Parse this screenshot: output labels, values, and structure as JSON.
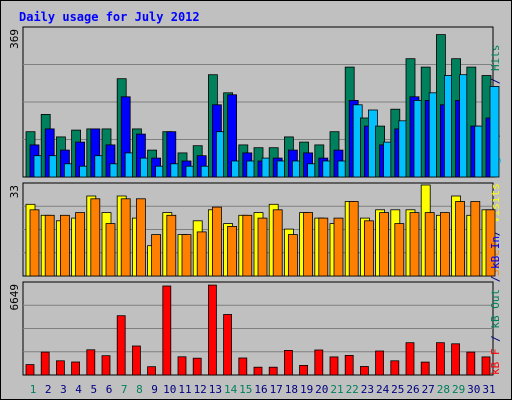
{
  "colors": {
    "background": "#C0C0C0",
    "border": "#000000",
    "title": "#0000FF",
    "hits": "#00805C",
    "files": "#0000FF",
    "pages": "#00C0FF",
    "visits": "#FFFF00",
    "sites": "#FF8000",
    "kb_in": "#0000FF",
    "kb_out": "#00805C",
    "kb_f": "#FF0000",
    "weekend_label": "#00805C",
    "weekday_label": "#000080"
  },
  "chart_data": {
    "type": "bar",
    "title": "Daily usage for July 2012",
    "categories": [
      "1",
      "2",
      "3",
      "4",
      "5",
      "6",
      "7",
      "8",
      "9",
      "10",
      "11",
      "12",
      "13",
      "14",
      "15",
      "16",
      "17",
      "18",
      "19",
      "20",
      "21",
      "22",
      "23",
      "24",
      "25",
      "26",
      "27",
      "28",
      "29",
      "30",
      "31"
    ],
    "weekend_days": [
      "1",
      "7",
      "8",
      "14",
      "15",
      "21",
      "22",
      "28",
      "29"
    ],
    "panels": [
      {
        "id": "hits-files-pages",
        "max_label": "369",
        "ylim": [
          0,
          369
        ],
        "right_labels": [
          {
            "text": "Pages",
            "color": "#00C0FF"
          },
          {
            "text": " / ",
            "color": "#000080"
          },
          {
            "text": "Files",
            "color": "#0000FF"
          },
          {
            "text": " / ",
            "color": "#000080"
          },
          {
            "text": "Hits",
            "color": "#00805C"
          }
        ],
        "series": [
          {
            "key": "hits",
            "color": "#00805C",
            "values": [
              113,
              156,
              100,
              117,
              120,
              120,
              245,
              120,
              67,
              113,
              60,
              78,
              255,
              210,
              80,
              73,
              73,
              100,
              87,
              80,
              113,
              274,
              147,
              127,
              169,
              295,
              274,
              355,
              295,
              274,
              253
            ]
          },
          {
            "key": "files",
            "color": "#0000FF",
            "values": [
              80,
              120,
              67,
              87,
              120,
              80,
              200,
              107,
              47,
              113,
              40,
              53,
              180,
              205,
              60,
              40,
              47,
              67,
              60,
              47,
              67,
              191,
              127,
              80,
              120,
              200,
              191,
              180,
              191,
              127,
              147
            ]
          },
          {
            "key": "pages",
            "color": "#00C0FF",
            "values": [
              53,
              53,
              33,
              27,
              53,
              33,
              60,
              47,
              27,
              33,
              27,
              27,
              113,
              40,
              40,
              47,
              40,
              40,
              33,
              40,
              40,
              180,
              167,
              87,
              140,
              191,
              210,
              253,
              255,
              127,
              226
            ]
          }
        ]
      },
      {
        "id": "visits-sites",
        "max_label": "33",
        "ylim": [
          0,
          33
        ],
        "right_labels": [
          {
            "text": "Sites",
            "color": "#FF8000"
          },
          {
            "text": " / ",
            "color": "#000080"
          },
          {
            "text": "Visits",
            "color": "#FFFF00"
          }
        ],
        "series": [
          {
            "key": "visits",
            "color": "#FFFF00",
            "values": [
              26,
              22,
              20,
              21,
              29,
              23,
              29,
              21,
              11,
              23,
              15,
              20,
              24,
              19,
              22,
              23,
              26,
              17,
              23,
              21,
              19,
              27,
              21,
              24,
              24,
              24,
              33,
              22,
              29,
              22,
              24
            ]
          },
          {
            "key": "sites",
            "color": "#FF8000",
            "values": [
              24,
              22,
              22,
              23,
              28,
              19,
              28,
              28,
              15,
              22,
              15,
              16,
              25,
              18,
              22,
              21,
              24,
              15,
              23,
              21,
              21,
              27,
              20,
              23,
              19,
              23,
              23,
              23,
              27,
              27,
              24
            ]
          }
        ]
      },
      {
        "id": "kb",
        "max_label": "6649",
        "ylim": [
          0,
          6649
        ],
        "right_labels": [
          {
            "text": "kB F",
            "color": "#FF0000"
          },
          {
            "text": " / ",
            "color": "#000080"
          },
          {
            "text": "kB Out",
            "color": "#00805C"
          },
          {
            "text": " / ",
            "color": "#000080"
          },
          {
            "text": "kB In",
            "color": "#0000FF"
          }
        ],
        "series": [
          {
            "key": "kb_f",
            "color": "#FF0000",
            "values": [
              760,
              1670,
              1040,
              950,
              1840,
              1410,
              4330,
              2120,
              610,
              6500,
              1330,
              1230,
              6570,
              4420,
              1240,
              570,
              570,
              1800,
              700,
              1830,
              1320,
              1430,
              620,
              1750,
              1040,
              2360,
              940,
              2360,
              2280,
              1670,
              1320
            ]
          }
        ]
      }
    ]
  }
}
